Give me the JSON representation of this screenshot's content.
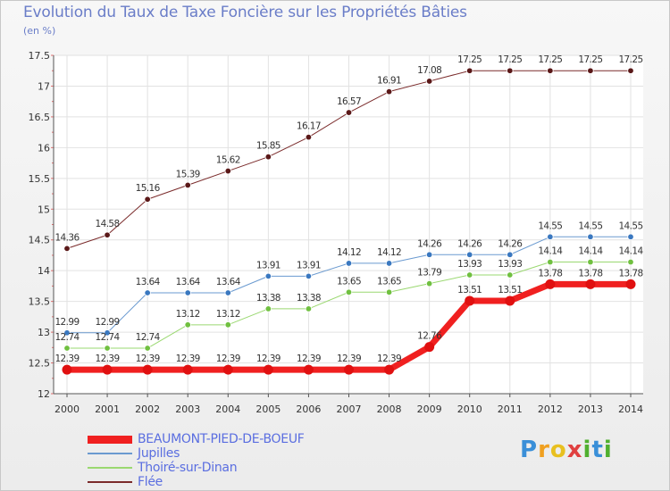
{
  "title": "Evolution du Taux de Taxe Foncière sur les Propriétés Bâties",
  "unit_label": "(en %)",
  "logo": {
    "letters": [
      "P",
      "r",
      "o",
      "x",
      "i",
      "t",
      "i"
    ],
    "colors": [
      "#3a8fd8",
      "#f0a020",
      "#e8c020",
      "#e04040",
      "#50b030",
      "#3a8fd8",
      "#50b030"
    ]
  },
  "chart_data": {
    "type": "line",
    "x": [
      "2000",
      "2001",
      "2002",
      "2003",
      "2004",
      "2005",
      "2006",
      "2007",
      "2008",
      "2009",
      "2010",
      "2011",
      "2012",
      "2013",
      "2014"
    ],
    "ylim": [
      12,
      17.5
    ],
    "yticks": [
      "12",
      "12.5",
      "13",
      "13.5",
      "14",
      "14.5",
      "15",
      "15.5",
      "16",
      "16.5",
      "17",
      "17.5"
    ],
    "grid": true,
    "series": [
      {
        "name": "Flée",
        "color": "#7a2a2a",
        "dot": "#5a1818",
        "width": 1,
        "values": [
          14.36,
          14.58,
          15.16,
          15.39,
          15.62,
          15.85,
          16.17,
          16.57,
          16.91,
          17.08,
          17.25,
          17.25,
          17.25,
          17.25,
          17.25
        ],
        "labels": [
          "14.36",
          "14.58",
          "15.16",
          "15.39",
          "15.62",
          "15.85",
          "16.17",
          "16.57",
          "16.91",
          "17.08",
          "17.25",
          "17.25",
          "17.25",
          "17.25",
          "17.25"
        ]
      },
      {
        "name": "Jupilles",
        "color": "#6a9ad0",
        "dot": "#3a78c0",
        "width": 1,
        "values": [
          12.99,
          12.99,
          13.64,
          13.64,
          13.64,
          13.91,
          13.91,
          14.12,
          14.12,
          14.26,
          14.26,
          14.26,
          14.55,
          14.55,
          14.55
        ],
        "labels": [
          "12.99",
          "12.99",
          "13.64",
          "13.64",
          "13.64",
          "13.91",
          "13.91",
          "14.12",
          "14.12",
          "14.26",
          "14.26",
          "14.26",
          "14.55",
          "14.55",
          "14.55"
        ]
      },
      {
        "name": "Thoiré-sur-Dinan",
        "color": "#9ad870",
        "dot": "#70c040",
        "width": 1,
        "values": [
          12.74,
          12.74,
          12.74,
          13.12,
          13.12,
          13.38,
          13.38,
          13.65,
          13.65,
          13.79,
          13.93,
          13.93,
          14.14,
          14.14,
          14.14
        ],
        "labels": [
          "12.74",
          "12.74",
          "12.74",
          "13.12",
          "13.12",
          "13.38",
          "13.38",
          "13.65",
          "13.65",
          "13.79",
          "13.93",
          "13.93",
          "14.14",
          "14.14",
          "14.14"
        ]
      },
      {
        "name": "BEAUMONT-PIED-DE-BOEUF",
        "color": "#f02020",
        "dot": "#e01010",
        "width": 7,
        "values": [
          12.39,
          12.39,
          12.39,
          12.39,
          12.39,
          12.39,
          12.39,
          12.39,
          12.39,
          12.76,
          13.51,
          13.51,
          13.78,
          13.78,
          13.78
        ],
        "labels": [
          "12.39",
          "12.39",
          "12.39",
          "12.39",
          "12.39",
          "12.39",
          "12.39",
          "12.39",
          "12.39",
          "12.76",
          "13.51",
          "13.51",
          "13.78",
          "13.78",
          "13.78"
        ]
      }
    ],
    "legend": [
      "BEAUMONT-PIED-DE-BOEUF",
      "Jupilles",
      "Thoiré-sur-Dinan",
      "Flée"
    ]
  }
}
